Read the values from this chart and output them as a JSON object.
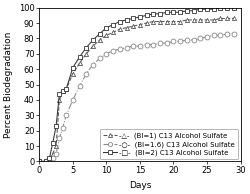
{
  "xlabel": "Days",
  "ylabel": "Percent Biodegradation",
  "xlim": [
    0,
    30
  ],
  "ylim": [
    0,
    100
  ],
  "xticks": [
    0,
    5,
    10,
    15,
    20,
    25,
    30
  ],
  "yticks": [
    0,
    10,
    20,
    30,
    40,
    50,
    60,
    70,
    80,
    90,
    100
  ],
  "series": [
    {
      "legend_label": "-△-  (BI=1) C13 Alcohol Sulfate",
      "marker": "^",
      "linestyle": "--",
      "color": "#555555",
      "x": [
        0,
        1,
        1.5,
        2,
        2.5,
        3,
        3.5,
        4,
        5,
        6,
        7,
        8,
        9,
        10,
        11,
        12,
        13,
        14,
        15,
        16,
        17,
        18,
        19,
        20,
        21,
        22,
        23,
        24,
        25,
        26,
        27,
        28,
        29
      ],
      "y": [
        0,
        0,
        2,
        5,
        10,
        40,
        46,
        47,
        57,
        64,
        70,
        75,
        79,
        82,
        84,
        86,
        87,
        88,
        89,
        90,
        91,
        91,
        91,
        91,
        91,
        92,
        92,
        92,
        92,
        92,
        93,
        93,
        93
      ]
    },
    {
      "legend_label": "-○-  (BI=1.6) C13 Alcohol Sulfate",
      "marker": "o",
      "linestyle": "-.",
      "color": "#888888",
      "x": [
        0,
        1,
        1.5,
        2,
        2.5,
        3,
        3.5,
        4,
        5,
        6,
        7,
        8,
        9,
        10,
        11,
        12,
        13,
        14,
        15,
        16,
        17,
        18,
        19,
        20,
        21,
        22,
        23,
        24,
        25,
        26,
        27,
        28,
        29
      ],
      "y": [
        0,
        0,
        1,
        2,
        5,
        15,
        22,
        30,
        40,
        49,
        57,
        63,
        67,
        70,
        72,
        73,
        74,
        75,
        75,
        76,
        76,
        77,
        77,
        78,
        78,
        79,
        79,
        80,
        81,
        82,
        82,
        83,
        83
      ]
    },
    {
      "legend_label": "-□-  (BI=2) C13 Alcohol Sulfate",
      "marker": "s",
      "linestyle": "-",
      "color": "#333333",
      "x": [
        0,
        1,
        1.5,
        2,
        2.5,
        3,
        3.5,
        4,
        5,
        6,
        7,
        8,
        9,
        10,
        11,
        12,
        13,
        14,
        15,
        16,
        17,
        18,
        19,
        20,
        21,
        22,
        23,
        24,
        25,
        26,
        27,
        28,
        29
      ],
      "y": [
        0,
        0,
        2,
        12,
        23,
        44,
        46,
        47,
        61,
        68,
        74,
        79,
        83,
        87,
        89,
        91,
        92,
        93,
        94,
        95,
        96,
        96,
        97,
        97,
        97,
        98,
        98,
        99,
        99,
        99,
        100,
        100,
        100
      ]
    }
  ],
  "background_color": "#ffffff",
  "fontsize_label": 6.5,
  "fontsize_tick": 6,
  "fontsize_legend": 5.0
}
